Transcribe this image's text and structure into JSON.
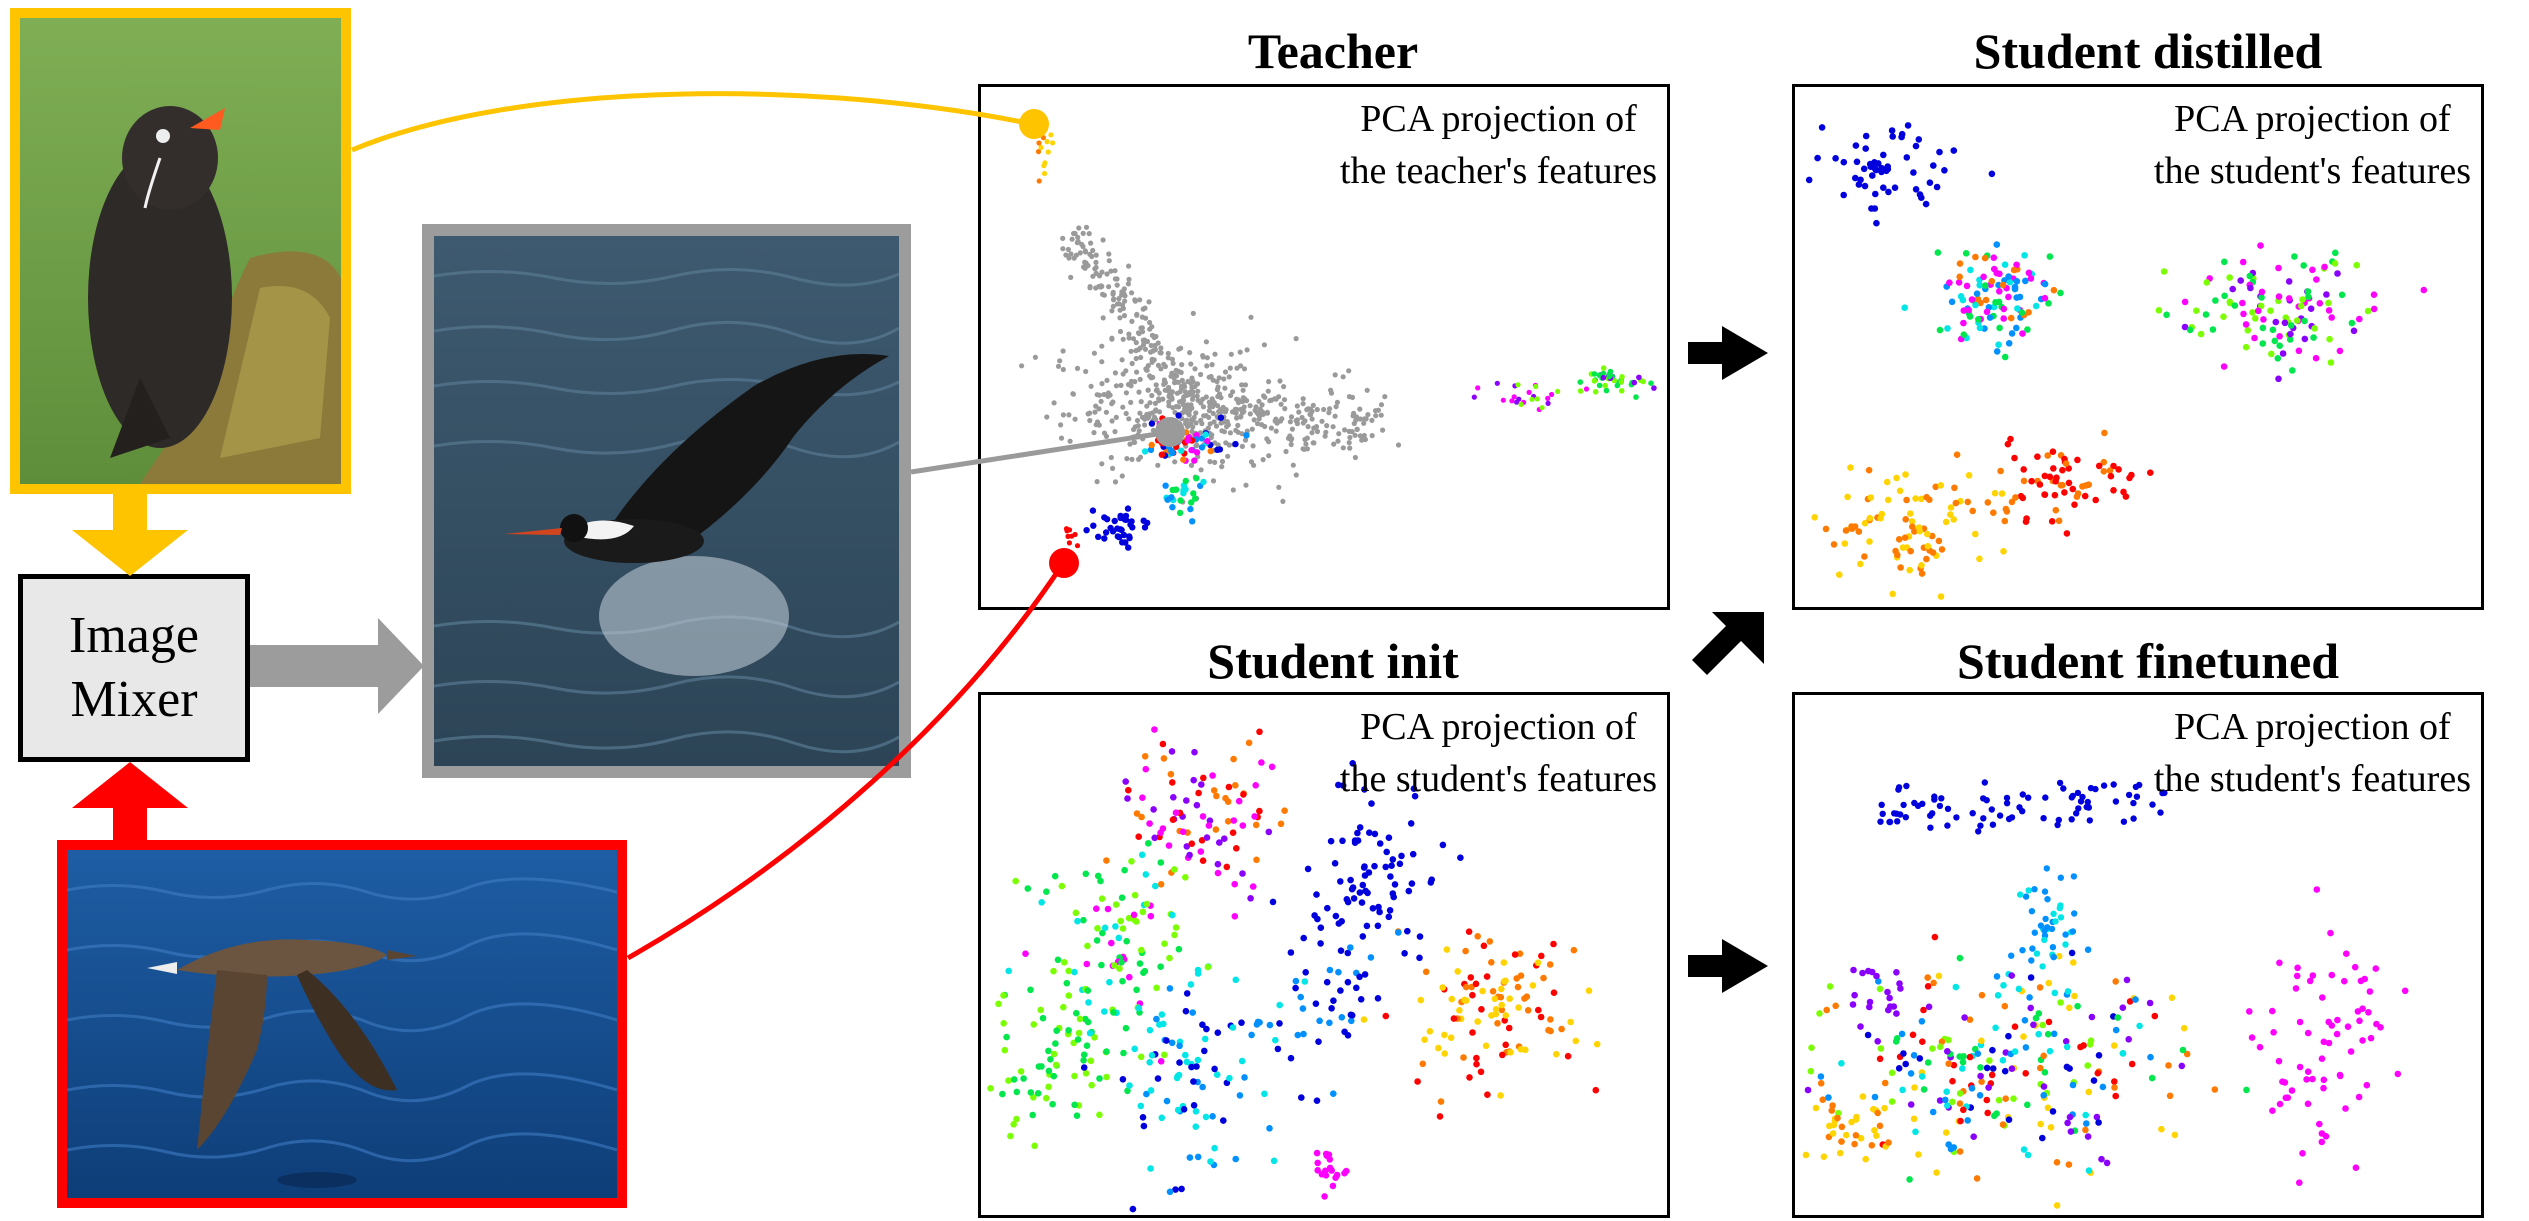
{
  "mixer": {
    "line1": "Image",
    "line2": "Mixer"
  },
  "colors": {
    "teacher_source": "#FFC400",
    "student_source": "#FF0000",
    "mixed_frame": "#9C9C9C",
    "mixed_point": "#9A9A9A"
  },
  "panels": {
    "teacher": {
      "title": "Teacher",
      "caption_line1": "PCA projection of",
      "caption_line2": "the teacher's features"
    },
    "distilled": {
      "title": "Student distilled",
      "caption_line1": "PCA projection of",
      "caption_line2": "the student's features"
    },
    "init": {
      "title": "Student init",
      "caption_line1": "PCA projection of",
      "caption_line2": "the student's features"
    },
    "finetuned": {
      "title": "Student finetuned",
      "caption_line1": "PCA projection of",
      "caption_line2": "the student's features"
    }
  },
  "cluster_palette": [
    "#0000DD",
    "#8A00FF",
    "#FF00FF",
    "#FF0000",
    "#FF7A00",
    "#FFD400",
    "#7CFF00",
    "#00E64D",
    "#00E6E6",
    "#0090FF"
  ]
}
